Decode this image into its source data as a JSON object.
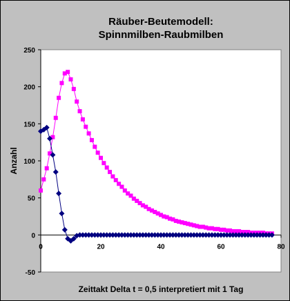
{
  "chart_data": {
    "type": "scatter",
    "title_lines": [
      "Räuber-Beutemodell:",
      "Spinnmilben-Raubmilben"
    ],
    "xlabel": "Zeittakt Delta t = 0,5 interpretiert mit 1 Tag",
    "ylabel": "Anzahl",
    "xlim": [
      0,
      80
    ],
    "ylim": [
      -50,
      250
    ],
    "x_ticks": [
      0,
      20,
      40,
      60,
      80
    ],
    "y_ticks": [
      -50,
      0,
      50,
      100,
      150,
      200,
      250
    ],
    "grid": false,
    "legend": "none",
    "plot_background": "#ffffff",
    "frame_background": "#c0c0c0",
    "series": [
      {
        "color": "#ff00ff",
        "marker": "square",
        "x": [
          0,
          1,
          2,
          3,
          4,
          5,
          6,
          7,
          8,
          9,
          10,
          11,
          12,
          13,
          14,
          15,
          16,
          17,
          18,
          19,
          20,
          21,
          22,
          23,
          24,
          25,
          26,
          27,
          28,
          29,
          30,
          31,
          32,
          33,
          34,
          35,
          36,
          37,
          38,
          39,
          40,
          41,
          42,
          43,
          44,
          45,
          46,
          47,
          48,
          49,
          50,
          51,
          52,
          53,
          54,
          55,
          56,
          57,
          58,
          59,
          60,
          61,
          62,
          63,
          64,
          65,
          66,
          67,
          68,
          69,
          70,
          71,
          72,
          73,
          74,
          75,
          76,
          77
        ],
        "y": [
          60,
          75,
          90,
          110,
          132,
          158,
          185,
          205,
          218,
          220,
          210,
          197,
          180,
          167,
          156,
          146,
          137,
          128,
          119,
          111,
          104,
          97,
          91,
          85,
          79,
          74,
          69,
          65,
          60,
          56,
          53,
          49,
          46,
          43,
          40,
          38,
          35,
          33,
          31,
          29,
          27,
          25,
          24,
          22,
          21,
          19,
          18,
          17,
          16,
          15,
          14,
          13,
          12,
          11,
          11,
          10,
          9,
          9,
          8,
          8,
          7,
          7,
          6,
          6,
          5,
          5,
          5,
          4,
          4,
          4,
          3,
          3,
          3,
          3,
          3,
          2,
          2,
          2
        ]
      },
      {
        "color": "#000080",
        "marker": "diamond",
        "x": [
          0,
          1,
          2,
          3,
          4,
          5,
          6,
          7,
          8,
          9,
          10,
          11,
          12,
          13,
          14,
          15,
          16,
          17,
          18,
          19,
          20,
          21,
          22,
          23,
          24,
          25,
          26,
          27,
          28,
          29,
          30,
          31,
          32,
          33,
          34,
          35,
          36,
          37,
          38,
          39,
          40,
          41,
          42,
          43,
          44,
          45,
          46,
          47,
          48,
          49,
          50,
          51,
          52,
          53,
          54,
          55,
          56,
          57,
          58,
          59,
          60,
          61,
          62,
          63,
          64,
          65,
          66,
          67,
          68,
          69,
          70,
          71,
          72,
          73,
          74,
          75,
          76,
          77
        ],
        "y": [
          140,
          142,
          145,
          130,
          108,
          85,
          56,
          29,
          7,
          -5,
          -8,
          -5,
          -1,
          0,
          0,
          0,
          0,
          0,
          0,
          0,
          0,
          0,
          0,
          0,
          0,
          0,
          0,
          0,
          0,
          0,
          0,
          0,
          0,
          0,
          0,
          0,
          0,
          0,
          0,
          0,
          0,
          0,
          0,
          0,
          0,
          0,
          0,
          0,
          0,
          0,
          0,
          0,
          0,
          0,
          0,
          0,
          0,
          0,
          0,
          0,
          0,
          0,
          0,
          0,
          0,
          0,
          0,
          0,
          0,
          0,
          0,
          0,
          0,
          0,
          0,
          0,
          0,
          0
        ]
      }
    ]
  }
}
